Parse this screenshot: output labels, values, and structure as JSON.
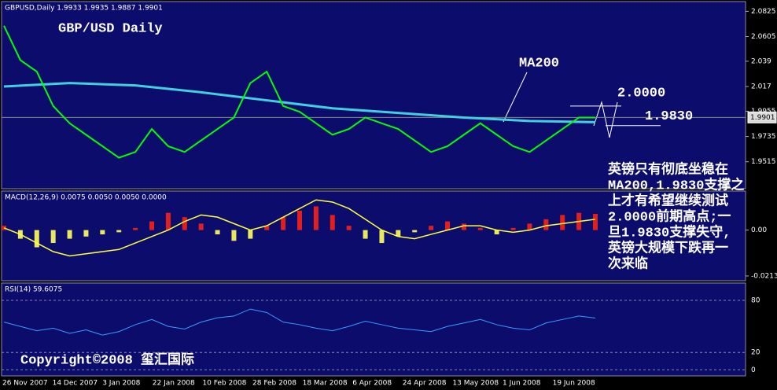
{
  "header": {
    "title": "GBPUSD,Daily 1.9933 1.9935 1.9887 1.9901"
  },
  "price_panel": {
    "ylim": [
      1.928,
      2.091
    ],
    "yticks": [
      2.0825,
      2.0605,
      2.039,
      2.017,
      1.9955,
      1.9735,
      1.9515
    ],
    "current": {
      "value": 1.9901,
      "label": "1.9901"
    },
    "closes": [
      2.07,
      2.04,
      2.03,
      2.0,
      1.985,
      1.975,
      1.965,
      1.955,
      1.96,
      1.98,
      1.965,
      1.96,
      1.97,
      1.98,
      1.99,
      2.02,
      2.03,
      2.0,
      1.995,
      1.985,
      1.975,
      1.98,
      1.99,
      1.985,
      1.98,
      1.97,
      1.96,
      1.965,
      1.975,
      1.985,
      1.975,
      1.965,
      1.96,
      1.97,
      1.98,
      1.99,
      1.99
    ],
    "ma200": [
      2.017,
      2.02,
      2.018,
      2.012,
      2.005,
      1.998,
      1.994,
      1.99,
      1.987,
      1.986
    ],
    "levels": [
      {
        "value": 2.0,
        "label": "2.0000"
      },
      {
        "value": 1.983,
        "label": "1.9830"
      }
    ],
    "annotations": {
      "symbol": "GBP/USD Daily",
      "ma": "MA200"
    }
  },
  "macd_panel": {
    "title": "MACD(12,26,9) 0.0075 0.0050 0.0050 0.0000",
    "ylim": [
      -0.0235,
      0.0181
    ],
    "yticks": [
      {
        "value": 0,
        "label": "0.00"
      },
      -0.0213
    ],
    "histogram": [
      0.002,
      -0.004,
      -0.008,
      -0.006,
      -0.004,
      -0.003,
      -0.002,
      -0.001,
      0.001,
      0.004,
      0.008,
      0.006,
      0.003,
      -0.002,
      -0.005,
      -0.004,
      0.002,
      0.006,
      0.009,
      0.011,
      0.007,
      0.002,
      -0.004,
      -0.006,
      -0.003,
      -0.001,
      0.002,
      0.004,
      0.003,
      0.001,
      -0.002,
      0.001,
      0.003,
      0.005,
      0.007,
      0.008,
      0.0075
    ],
    "signal": [
      0.001,
      -0.002,
      -0.006,
      -0.01,
      -0.012,
      -0.011,
      -0.01,
      -0.009,
      -0.006,
      -0.003,
      0.0,
      0.004,
      0.007,
      0.006,
      0.003,
      0.0,
      0.002,
      0.006,
      0.01,
      0.014,
      0.013,
      0.01,
      0.005,
      0.0,
      -0.003,
      -0.004,
      -0.002,
      0.0,
      0.002,
      0.002,
      0.0,
      -0.001,
      0.0,
      0.002,
      0.003,
      0.004,
      0.005
    ]
  },
  "rsi_panel": {
    "title": "RSI(14) 59.6075",
    "ylim": [
      -7,
      100
    ],
    "yticks": [
      80,
      20,
      0
    ],
    "values": [
      55,
      50,
      45,
      48,
      42,
      46,
      40,
      44,
      52,
      58,
      50,
      47,
      55,
      60,
      62,
      70,
      66,
      55,
      52,
      48,
      45,
      50,
      56,
      52,
      48,
      46,
      44,
      50,
      54,
      58,
      52,
      48,
      46,
      54,
      58,
      62,
      59.6075
    ]
  },
  "time_axis": {
    "labels": [
      "26 Nov 2007",
      "14 Dec 2007",
      "3 Jan 2008",
      "22 Jan 2008",
      "10 Feb 2008",
      "28 Feb 2008",
      "18 Mar 2008",
      "6 Apr 2008",
      "24 Apr 2008",
      "13 May 2008",
      "1 Jun 2008",
      "19 Jun 2008"
    ]
  },
  "commentary": {
    "lines": [
      "英镑只有彻底坐稳在",
      "MA200,1.9830支撑之",
      "上才有希望继续测试",
      "2.0000前期高点;一",
      "旦1.9830支撑失守,",
      "英镑大规模下跌再一",
      "次来临"
    ]
  },
  "copyright": "Copyright©2008 玺汇国际"
}
